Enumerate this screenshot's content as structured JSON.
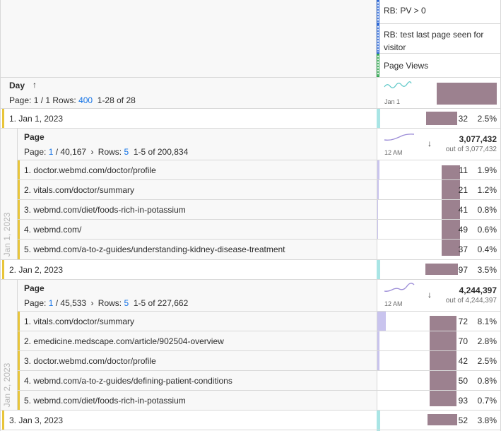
{
  "segments": [
    {
      "label": "RB: PV > 0",
      "color": "#2f6ad8"
    },
    {
      "label": "RB: test last page seen for visitor",
      "color": "#2f6ad8"
    },
    {
      "label": "Page Views",
      "color": "#33a853"
    }
  ],
  "dimension": {
    "title": "Day",
    "sort_icon": "arrow-up-icon",
    "page_prefix": "Page: 1 / 1  Rows:",
    "rows_value": "400",
    "range": "1-28 of 28",
    "spark_label": "Jan 1"
  },
  "days": [
    {
      "label": "1.  Jan 1, 2023",
      "value": "32",
      "pct": "2.5%",
      "vert_label": "Jan 1, 2023",
      "nested": {
        "title": "Page",
        "page_label": "Page:",
        "page_current": "1",
        "page_total": "/ 40,167",
        "rows_label": "Rows:",
        "rows_value": "5",
        "range": "1-5 of 200,834",
        "spark_label": "12 AM",
        "total": "3,077,432",
        "total_of": "out of 3,077,432",
        "rows": [
          {
            "label": "1.  doctor.webmd.com/doctor/profile",
            "value": "11",
            "pct": "1.9%"
          },
          {
            "label": "2.  vitals.com/doctor/summary",
            "value": "21",
            "pct": "1.2%"
          },
          {
            "label": "3.  webmd.com/diet/foods-rich-in-potassium",
            "value": "41",
            "pct": "0.8%"
          },
          {
            "label": "4.  webmd.com/",
            "value": "49",
            "pct": "0.6%"
          },
          {
            "label": "5.  webmd.com/a-to-z-guides/understanding-kidney-disease-treatment",
            "value": "37",
            "pct": "0.4%"
          }
        ]
      }
    },
    {
      "label": "2.  Jan 2, 2023",
      "value": "97",
      "pct": "3.5%",
      "vert_label": "Jan 2, 2023",
      "nested": {
        "title": "Page",
        "page_label": "Page:",
        "page_current": "1",
        "page_total": "/ 45,533",
        "rows_label": "Rows:",
        "rows_value": "5",
        "range": "1-5 of 227,662",
        "spark_label": "12 AM",
        "total": "4,244,397",
        "total_of": "out of 4,244,397",
        "rows": [
          {
            "label": "1.  vitals.com/doctor/summary",
            "value": "72",
            "pct": "8.1%"
          },
          {
            "label": "2.  emedicine.medscape.com/article/902504-overview",
            "value": "70",
            "pct": "2.8%"
          },
          {
            "label": "3.  doctor.webmd.com/doctor/profile",
            "value": "42",
            "pct": "2.5%"
          },
          {
            "label": "4.  webmd.com/a-to-z-guides/defining-patient-conditions",
            "value": "50",
            "pct": "0.8%"
          },
          {
            "label": "5.  webmd.com/diet/foods-rich-in-potassium",
            "value": "93",
            "pct": "0.7%"
          }
        ]
      }
    },
    {
      "label": "3.  Jan 3, 2023",
      "value": "52",
      "pct": "3.8%"
    }
  ]
}
